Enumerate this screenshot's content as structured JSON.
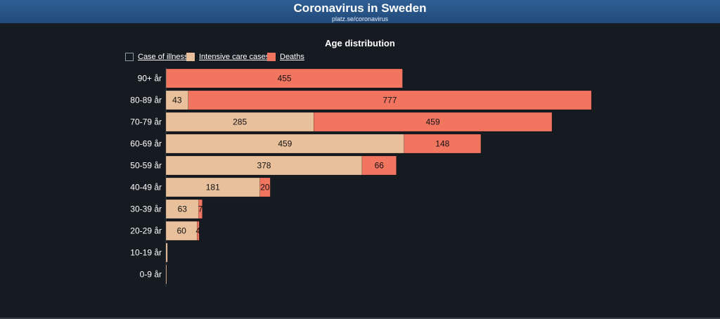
{
  "header": {
    "title": "Coronavirus in Sweden",
    "link": "platz.se/coronavirus"
  },
  "colors": {
    "banner": "#2a5688",
    "background": "#161a21",
    "case_of_illness": "#161a21",
    "intensive_care": "#e8c09c",
    "deaths": "#f27560"
  },
  "chart_data": {
    "type": "bar",
    "orientation": "horizontal",
    "stacked": true,
    "title": "Age distribution",
    "categories": [
      "90+ år",
      "80-89 år",
      "70-79 år",
      "60-69 år",
      "50-59 år",
      "40-49 år",
      "30-39 år",
      "20-29 år",
      "10-19 år",
      "0-9 år"
    ],
    "series": [
      {
        "name": "Case of illness",
        "values": [
          0,
          0,
          0,
          0,
          0,
          0,
          0,
          0,
          0,
          0
        ],
        "color": "#161a21"
      },
      {
        "name": "Intensive care cases",
        "values": [
          1,
          43,
          285,
          459,
          378,
          181,
          63,
          60,
          3,
          1
        ],
        "color": "#e8c09c",
        "labels": [
          "",
          "43",
          "285",
          "459",
          "378",
          "181",
          "63",
          "60",
          "",
          ""
        ]
      },
      {
        "name": "Deaths",
        "values": [
          455,
          777,
          459,
          148,
          66,
          20,
          7,
          4,
          0,
          0
        ],
        "color": "#f27560",
        "labels": [
          "455",
          "777",
          "459",
          "148",
          "66",
          "20",
          "7",
          "4",
          "",
          ""
        ]
      }
    ],
    "xlim": [
      0,
      824
    ],
    "legend_position": "top-left",
    "grid": false
  }
}
